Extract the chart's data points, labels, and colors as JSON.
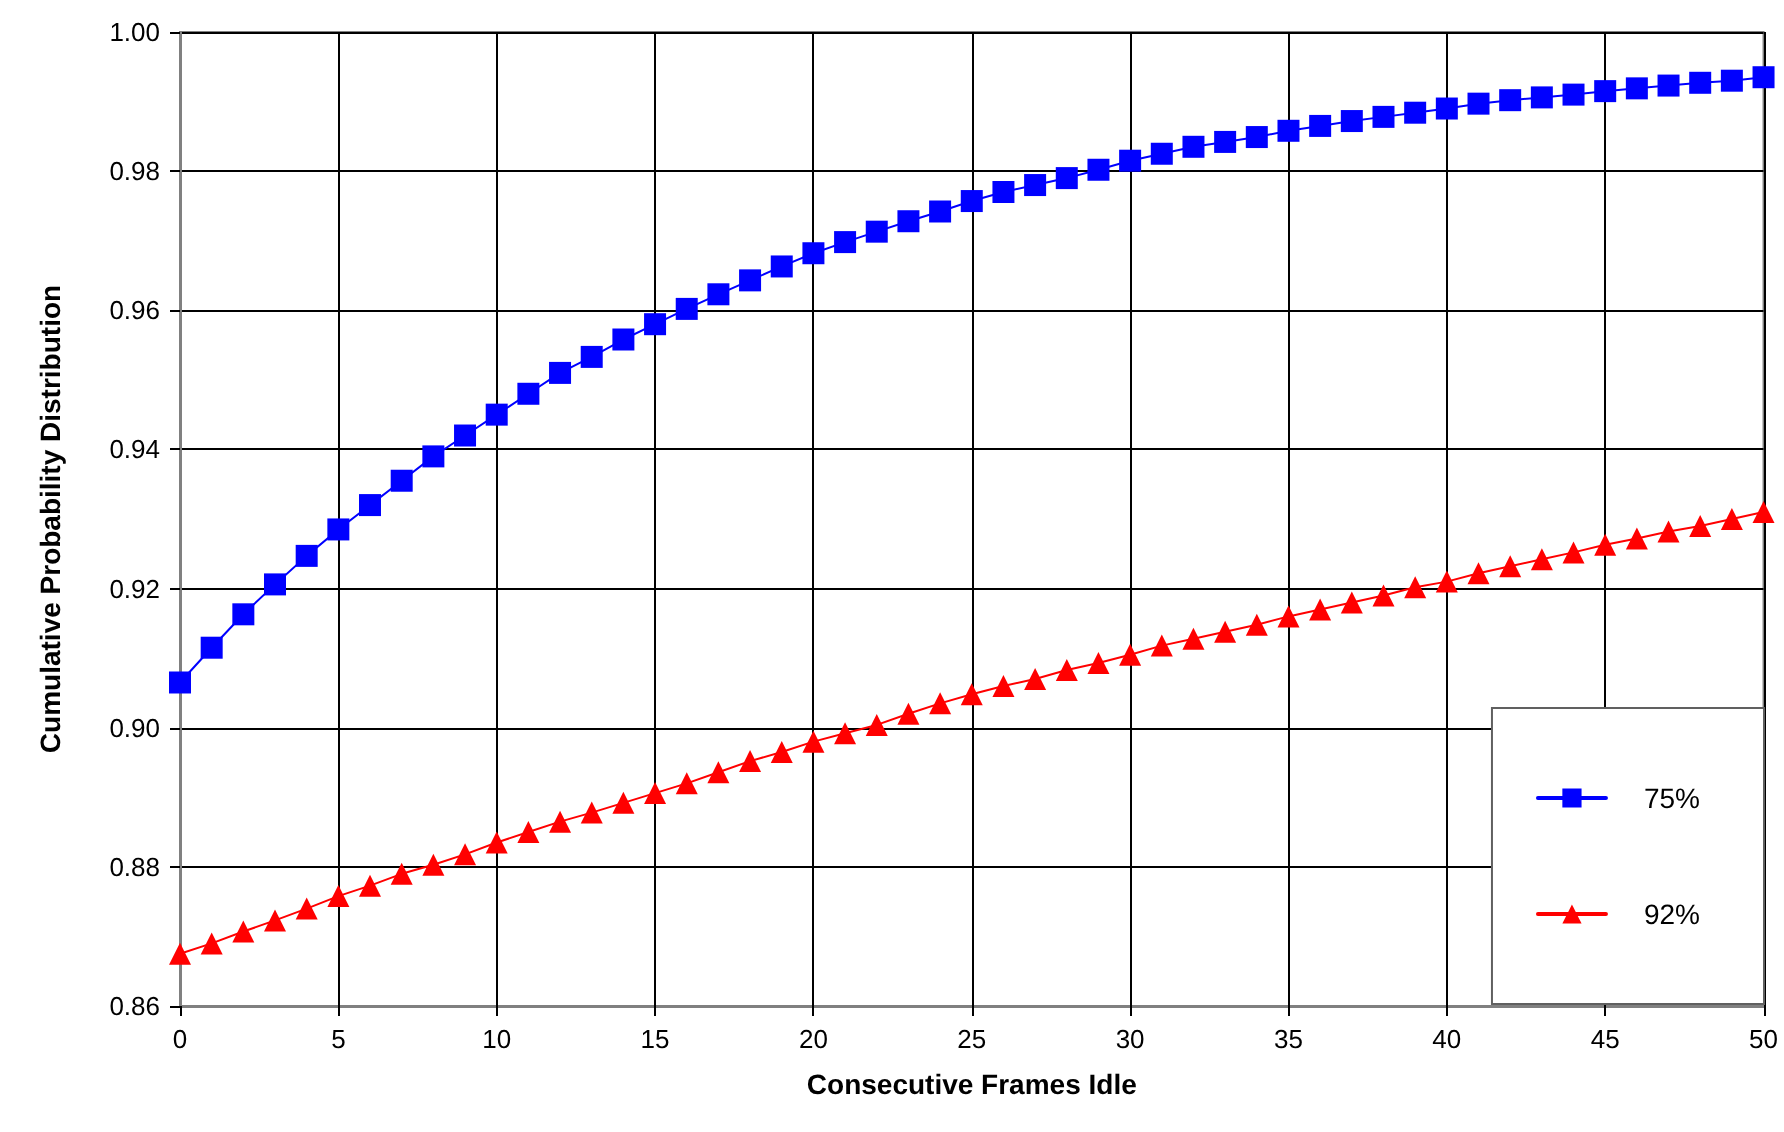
{
  "chart_data": {
    "type": "line",
    "xlabel": "Consecutive Frames Idle",
    "ylabel": "Cumulative Probability Distribution",
    "x": [
      0,
      1,
      2,
      3,
      4,
      5,
      6,
      7,
      8,
      9,
      10,
      11,
      12,
      13,
      14,
      15,
      16,
      17,
      18,
      19,
      20,
      21,
      22,
      23,
      24,
      25,
      26,
      27,
      28,
      29,
      30,
      31,
      32,
      33,
      34,
      35,
      36,
      37,
      38,
      39,
      40,
      41,
      42,
      43,
      44,
      45,
      46,
      47,
      48,
      49,
      50
    ],
    "series": [
      {
        "name": "75%",
        "color": "#0000ff",
        "marker": "square",
        "values": [
          0.9065,
          0.9115,
          0.9163,
          0.9206,
          0.9247,
          0.9285,
          0.932,
          0.9355,
          0.939,
          0.942,
          0.945,
          0.948,
          0.951,
          0.9533,
          0.9558,
          0.958,
          0.9602,
          0.9623,
          0.9643,
          0.9663,
          0.9682,
          0.9698,
          0.9713,
          0.9728,
          0.9742,
          0.9757,
          0.977,
          0.978,
          0.979,
          0.9802,
          0.9815,
          0.9825,
          0.9835,
          0.9842,
          0.9849,
          0.9858,
          0.9865,
          0.9872,
          0.9878,
          0.9884,
          0.989,
          0.9897,
          0.9902,
          0.9906,
          0.991,
          0.9915,
          0.9919,
          0.9923,
          0.9927,
          0.993,
          0.9935
        ]
      },
      {
        "name": "92%",
        "color": "#ff0000",
        "marker": "triangle",
        "values": [
          0.8675,
          0.869,
          0.8707,
          0.8723,
          0.874,
          0.8758,
          0.8773,
          0.879,
          0.8803,
          0.8818,
          0.8835,
          0.885,
          0.8865,
          0.8878,
          0.8892,
          0.8906,
          0.892,
          0.8936,
          0.8952,
          0.8965,
          0.898,
          0.8992,
          0.9004,
          0.902,
          0.9035,
          0.9048,
          0.906,
          0.907,
          0.9083,
          0.9093,
          0.9105,
          0.9118,
          0.9128,
          0.9138,
          0.9148,
          0.916,
          0.917,
          0.918,
          0.919,
          0.9202,
          0.921,
          0.9222,
          0.9232,
          0.9242,
          0.9252,
          0.9263,
          0.9272,
          0.9282,
          0.929,
          0.93,
          0.931
        ]
      }
    ],
    "xlim": [
      0,
      50
    ],
    "xticks": [
      0,
      5,
      10,
      15,
      20,
      25,
      30,
      35,
      40,
      45,
      50
    ],
    "ylim": [
      0.86,
      1.0
    ],
    "yticks": [
      0.86,
      0.88,
      {
        "value": 0.9,
        "label": "0.90"
      },
      0.92,
      0.94,
      0.96,
      0.98,
      {
        "value": 1.0,
        "label": "1.00"
      }
    ],
    "grid": true,
    "legend": "bottom right",
    "line_style": "solid"
  }
}
